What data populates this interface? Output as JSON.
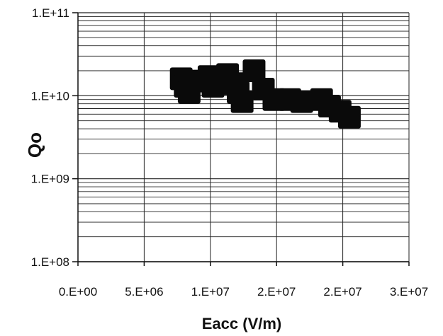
{
  "chart_data": {
    "type": "scatter",
    "title": "",
    "xlabel": "Eacc (V/m)",
    "ylabel": "Qo",
    "x_scale": "linear",
    "y_scale": "log",
    "xlim": [
      0,
      25000000
    ],
    "ylim": [
      100000000,
      100000000000
    ],
    "x_tick_labels": [
      "0.E+00",
      "5.E+06",
      "1.E+07",
      "2.E+07",
      "2.E+07",
      "3.E+07"
    ],
    "y_tick_labels": [
      "1.E+08",
      "1.E+09",
      "1.E+10",
      "1.E+11"
    ],
    "grid": "horizontal and vertical gridlines, including log minor lines",
    "legend": "none",
    "marker": "filled square",
    "series": [
      {
        "x": [
          7800000,
          8100000,
          8400000,
          9400000,
          9900000,
          10200000,
          11300000,
          11800000,
          12100000,
          12400000,
          13300000,
          14000000,
          14800000,
          16000000,
          16900000,
          18400000,
          19000000,
          19800000,
          20500000
        ],
        "y": [
          16000000000,
          13000000000,
          11000000000,
          15000000000,
          17000000000,
          13000000000,
          18000000000,
          14000000000,
          11000000000,
          8500000000,
          20000000000,
          12000000000,
          9000000000,
          9000000000,
          8500000000,
          9000000000,
          7500000000,
          6500000000,
          5500000000
        ]
      }
    ],
    "colors": {
      "marker": "#0a0a0a",
      "grid": "#222222",
      "axis": "#111111"
    }
  }
}
